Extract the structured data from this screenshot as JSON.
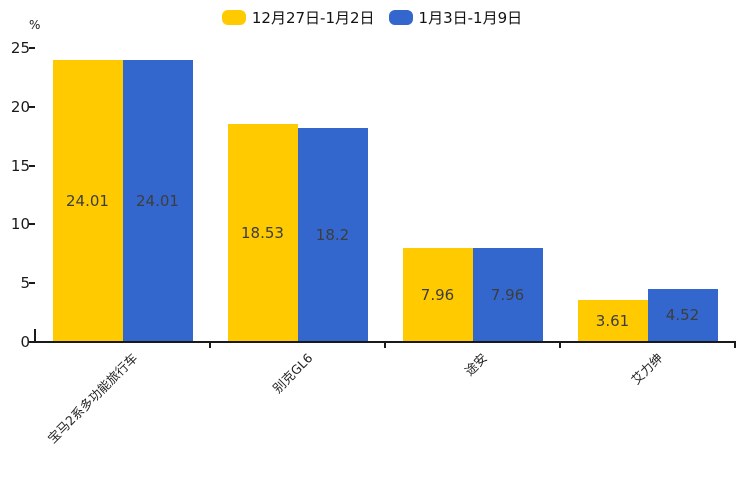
{
  "chart_data": {
    "type": "bar",
    "title": "",
    "xlabel": "",
    "ylabel": "%",
    "categories": [
      "宝马2系多功能旅行车",
      "别克GL6",
      "途安",
      "艾力绅"
    ],
    "series": [
      {
        "name": "12月27日-1月2日",
        "color": "#FFCB00",
        "values": [
          24.01,
          18.53,
          7.96,
          3.61
        ],
        "labels": [
          "24.01",
          "18.53",
          "7.96",
          "3.61"
        ]
      },
      {
        "name": "1月3日-1月9日",
        "color": "#3367CE",
        "values": [
          24.01,
          18.2,
          7.96,
          4.52
        ],
        "labels": [
          "24.01",
          "18.2",
          "7.96",
          "4.52"
        ]
      }
    ],
    "ylim": [
      0,
      25
    ],
    "yticks": [
      0,
      5,
      10,
      15,
      20,
      25
    ],
    "grid": false,
    "legend_position": "top-center",
    "value_label_position": "inside-center",
    "background": "#ffffff",
    "axis_color": "#1a1a1a",
    "value_label_color": "#3d3d3d"
  }
}
